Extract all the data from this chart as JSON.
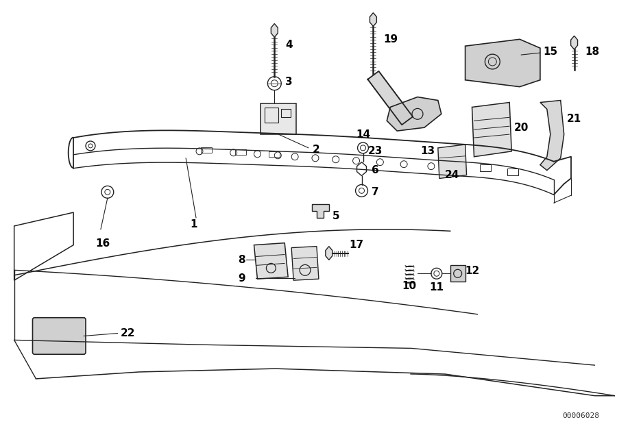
{
  "bg_color": "#ffffff",
  "lc": "#222222",
  "diagram_id": "00006028",
  "figsize": [
    9.0,
    6.35
  ],
  "dpi": 100
}
